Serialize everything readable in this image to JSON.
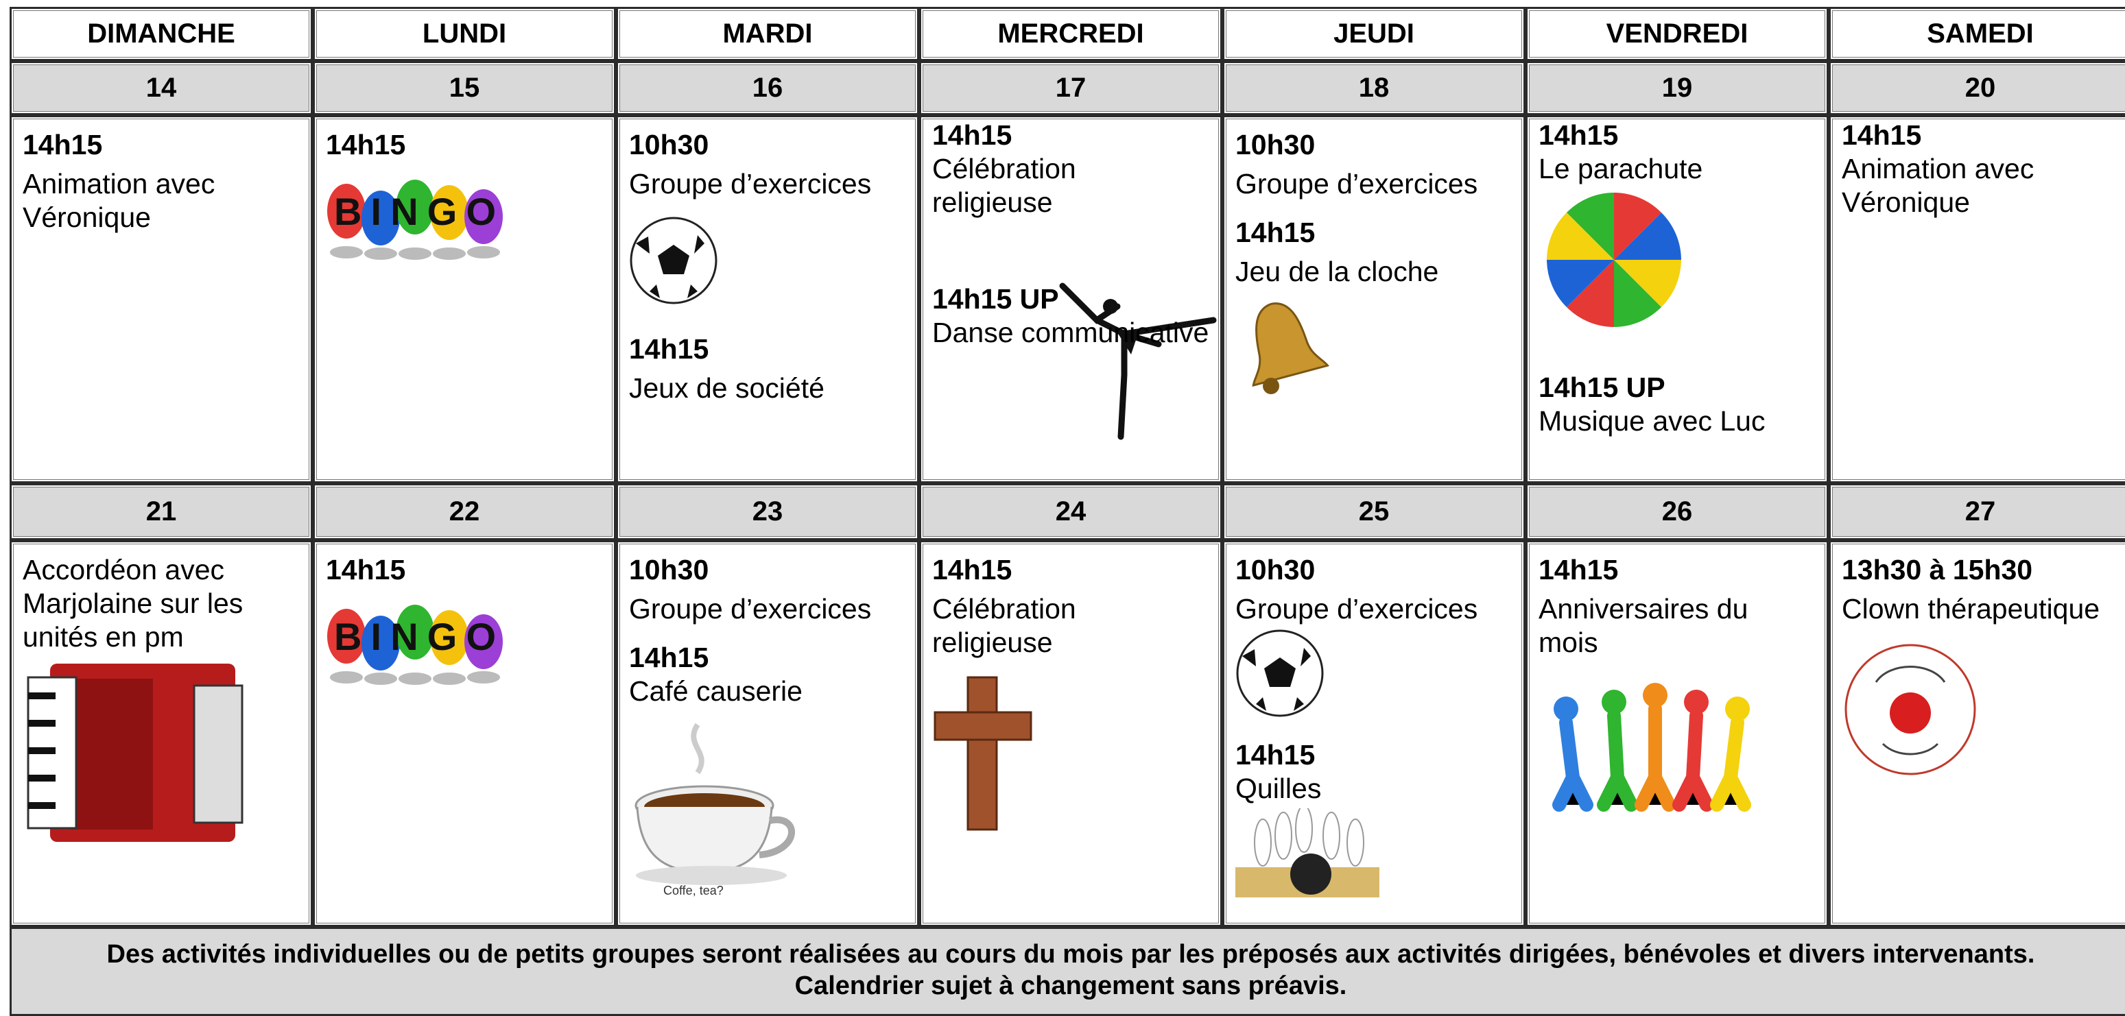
{
  "days": [
    "DIMANCHE",
    "LUNDI",
    "MARDI",
    "MERCREDI",
    "JEUDI",
    "VENDREDI",
    "SAMEDI"
  ],
  "weeks": [
    {
      "dates": [
        14,
        15,
        16,
        17,
        18,
        19,
        20
      ],
      "cells": [
        [
          {
            "time": "14h15",
            "text": "Animation avec Véronique"
          }
        ],
        [
          {
            "time": "14h15",
            "image_text": "BINGO"
          }
        ],
        [
          {
            "time": "10h30",
            "text": "Groupe d’exercices"
          },
          {
            "time": "14h15",
            "text": "Jeux de société"
          }
        ],
        [
          {
            "time": "14h15",
            "text": "Célébration religieuse"
          },
          {
            "time": "14h15 UP",
            "text": "Danse communicative"
          }
        ],
        [
          {
            "time": "10h30",
            "text": "Groupe d’exercices"
          },
          {
            "time": "14h15",
            "text": "Jeu de la cloche"
          }
        ],
        [
          {
            "time": "14h15",
            "text": "Le parachute"
          },
          {
            "time": "14h15 UP",
            "text": "Musique avec Luc"
          }
        ],
        [
          {
            "time": "14h15",
            "text": "Animation avec Véronique"
          }
        ]
      ]
    },
    {
      "dates": [
        21,
        22,
        23,
        24,
        25,
        26,
        27
      ],
      "cells": [
        [
          {
            "text": "Accordéon avec Marjolaine sur les unités en pm"
          }
        ],
        [
          {
            "time": "14h15",
            "image_text": "BINGO"
          }
        ],
        [
          {
            "time": "10h30",
            "text": "Groupe d’exercices"
          },
          {
            "time": "14h15",
            "text": "Café causerie",
            "image_text": "Coffe, tea?"
          }
        ],
        [
          {
            "time": "14h15",
            "text": "Célébration religieuse"
          }
        ],
        [
          {
            "time": "10h30",
            "text": "Groupe d’exercices"
          },
          {
            "time": "14h15",
            "text": "Quilles"
          }
        ],
        [
          {
            "time": "14h15",
            "text": "Anniversaires du mois"
          }
        ],
        [
          {
            "time": "13h30 à 15h30",
            "text": "Clown thérapeutique"
          }
        ]
      ]
    }
  ],
  "footer": [
    "Des activités individuelles ou de petits groupes seront réalisées au cours du mois par les préposés aux activités dirigées, bénévoles et divers intervenants.",
    "Calendrier sujet à changement sans préavis."
  ]
}
